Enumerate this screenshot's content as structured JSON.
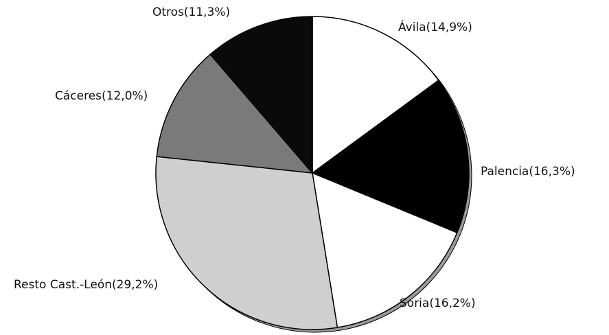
{
  "chart_data": {
    "type": "pie",
    "values": [
      14.9,
      16.3,
      16.2,
      29.2,
      12.0,
      11.3
    ],
    "value_labels": [
      "Ávila(14,9%)",
      "Palencia(16,3%)",
      "Soria(16,2%)",
      "Resto Cast.-León(29,2%)",
      "Cáceres(12,0%)",
      "Otros(11,3%)"
    ],
    "colors": [
      "#ffffff",
      "#000000",
      "#ffffff",
      "#cfcfcf",
      "#7a7a7a",
      "#0a0a0a"
    ]
  }
}
